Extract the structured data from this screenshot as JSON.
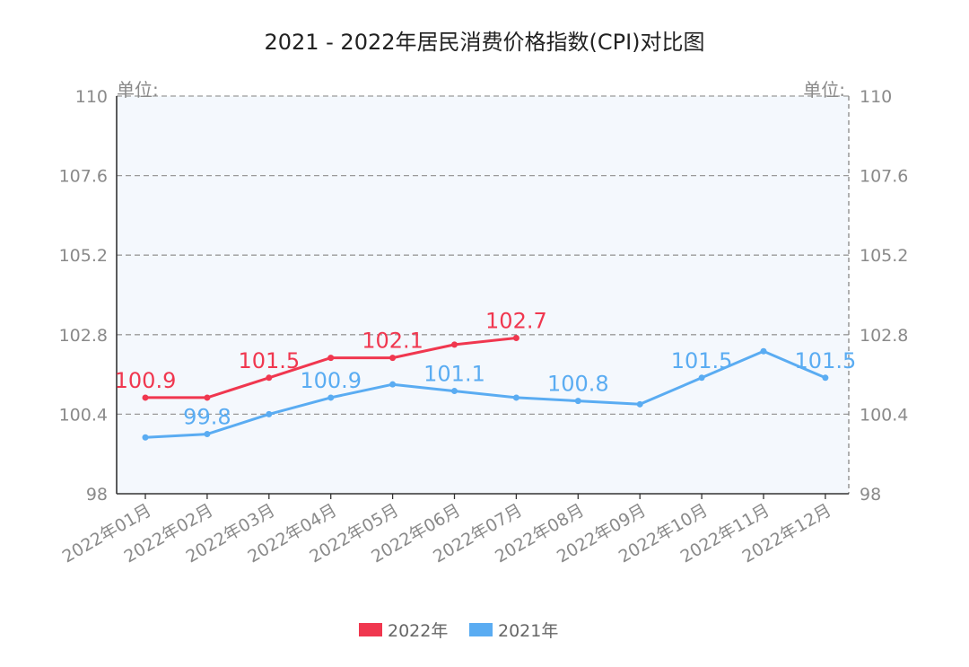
{
  "chart_data": {
    "type": "line",
    "title": "2021 - 2022年居民消费价格指数(CPI)对比图",
    "unit_label_left": "单位:",
    "unit_label_right": "单位:",
    "categories": [
      "2022年01月",
      "2022年02月",
      "2022年03月",
      "2022年04月",
      "2022年05月",
      "2022年06月",
      "2022年07月",
      "2022年08月",
      "2022年09月",
      "2022年10月",
      "2022年11月",
      "2022年12月"
    ],
    "ylim": [
      98,
      110
    ],
    "yticks": [
      "98",
      "100.4",
      "102.8",
      "105.2",
      "107.6",
      "110"
    ],
    "ytick_values": [
      98,
      100.4,
      102.8,
      105.2,
      107.6,
      110
    ],
    "grid": true,
    "legend_position": "bottom-center",
    "series": [
      {
        "name": "2022年",
        "color": "#f0374f",
        "values": [
          100.9,
          100.9,
          101.5,
          102.1,
          102.1,
          102.5,
          102.7,
          null,
          null,
          null,
          null,
          null
        ],
        "labels": [
          "100.9",
          null,
          "101.5",
          null,
          "102.1",
          null,
          "102.7",
          null,
          null,
          null,
          null,
          null
        ]
      },
      {
        "name": "2021年",
        "color": "#5aacf2",
        "values": [
          99.7,
          99.8,
          100.4,
          100.9,
          101.3,
          101.1,
          100.9,
          100.8,
          100.7,
          101.5,
          102.3,
          101.5
        ],
        "labels": [
          null,
          "99.8",
          null,
          "100.9",
          null,
          "101.1",
          null,
          "100.8",
          null,
          "101.5",
          null,
          "101.5"
        ]
      }
    ]
  }
}
